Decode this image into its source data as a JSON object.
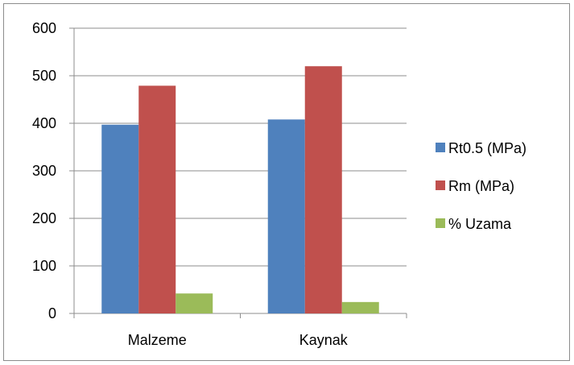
{
  "chart_data": {
    "type": "bar",
    "categories": [
      "Malzeme",
      "Kaynak"
    ],
    "series": [
      {
        "name": "Rt0.5 (MPa)",
        "values": [
          397,
          408
        ],
        "color": "#4f81bd"
      },
      {
        "name": "Rm (MPa)",
        "values": [
          479,
          520
        ],
        "color": "#c0504d"
      },
      {
        "name": "% Uzama",
        "values": [
          42,
          24
        ],
        "color": "#9bbb59"
      }
    ],
    "yticks": [
      0,
      100,
      200,
      300,
      400,
      500,
      600
    ],
    "ylim": [
      0,
      600
    ],
    "grid": true,
    "legend_position": "right"
  }
}
